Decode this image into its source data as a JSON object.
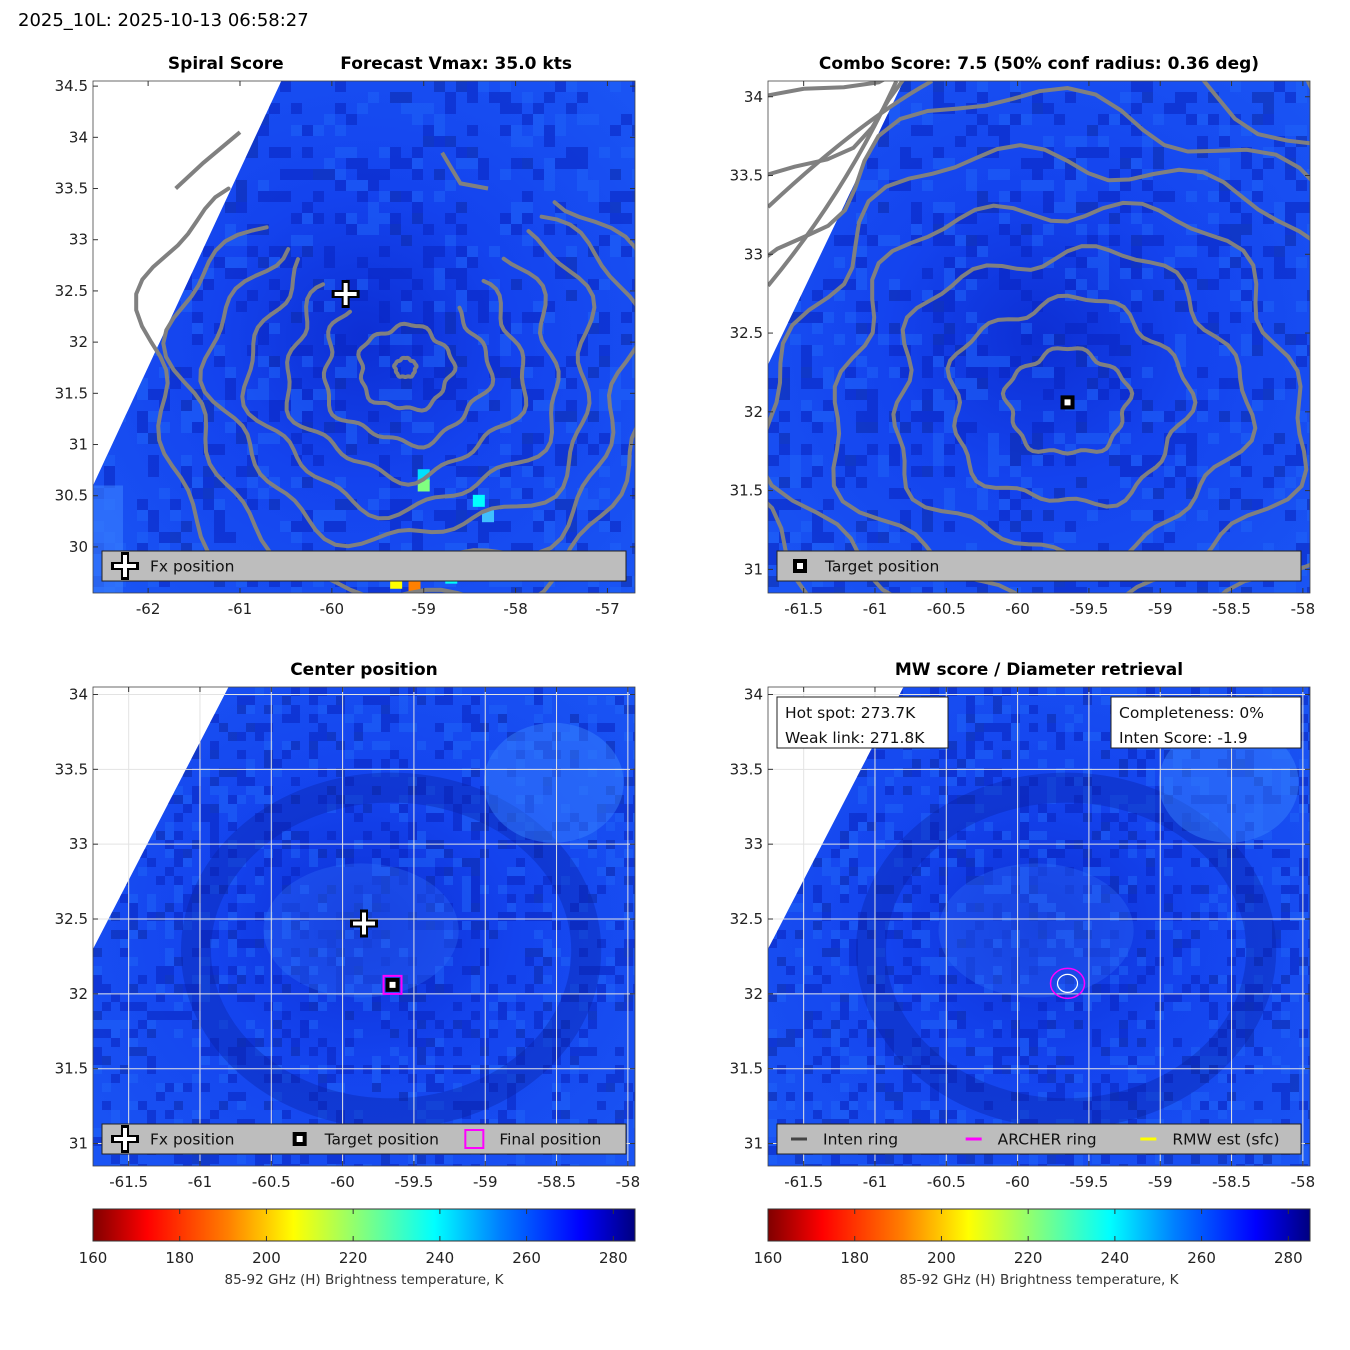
{
  "figure": {
    "suptitle": "2025_10L: 2025-10-13 06:58:27"
  },
  "colors": {
    "background_field": "#1446f0",
    "contour": "#808080",
    "legend_bg": "#bdbdbd",
    "magenta": "#ff00ff",
    "yellow": "#ffff00",
    "cmap": [
      "#800000",
      "#ff0000",
      "#ff8000",
      "#ffff00",
      "#80ff80",
      "#00ffff",
      "#0080ff",
      "#0000ff",
      "#000080"
    ]
  },
  "chart_data": [
    {
      "type": "heatmap",
      "panel": "spiral",
      "title_left": "Spiral Score",
      "title_right": "Forecast Vmax: 35.0 kts",
      "xlim": [
        -62.6,
        -56.7
      ],
      "ylim": [
        29.55,
        34.55
      ],
      "xticks": [
        -62,
        -61,
        -60,
        -59,
        -58,
        -57
      ],
      "yticks": [
        30,
        30.5,
        31,
        31.5,
        32,
        32.5,
        33,
        33.5,
        34,
        34.5
      ],
      "swath_edge": [
        [
          -62.6,
          30.6
        ],
        [
          -60.55,
          34.55
        ]
      ],
      "center": [
        -59.2,
        31.75
      ],
      "markers": [
        {
          "name": "Fx position",
          "symbol": "plus",
          "x": -59.85,
          "y": 32.47
        }
      ],
      "legend": [
        "Fx position"
      ]
    },
    {
      "type": "heatmap",
      "panel": "combo",
      "title": "Combo Score: 7.5  (50% conf radius: 0.36 deg)",
      "xlim": [
        -61.75,
        -57.95
      ],
      "ylim": [
        30.85,
        34.1
      ],
      "xticks": [
        -61.5,
        -61,
        -60.5,
        -60,
        -59.5,
        -59,
        -58.5,
        -58
      ],
      "yticks": [
        31,
        31.5,
        32,
        32.5,
        33,
        33.5,
        34
      ],
      "swath_edge": [
        [
          -61.75,
          32.3
        ],
        [
          -60.8,
          34.1
        ]
      ],
      "center": [
        -59.65,
        32.06
      ],
      "markers": [
        {
          "name": "Target position",
          "symbol": "square",
          "x": -59.65,
          "y": 32.06
        }
      ],
      "legend": [
        "Target position"
      ]
    },
    {
      "type": "heatmap",
      "panel": "center",
      "title": "Center position",
      "xlim": [
        -61.75,
        -57.95
      ],
      "ylim": [
        30.85,
        34.05
      ],
      "xticks": [
        -61.5,
        -61,
        -60.5,
        -60,
        -59.5,
        -59,
        -58.5,
        -58
      ],
      "yticks": [
        31,
        31.5,
        32,
        32.5,
        33,
        33.5,
        34
      ],
      "swath_edge": [
        [
          -61.75,
          32.3
        ],
        [
          -60.8,
          34.05
        ]
      ],
      "markers": [
        {
          "name": "Fx position",
          "symbol": "plus",
          "x": -59.85,
          "y": 32.47
        },
        {
          "name": "Target position",
          "symbol": "square",
          "x": -59.65,
          "y": 32.06
        },
        {
          "name": "Final position",
          "symbol": "msquare",
          "x": -59.65,
          "y": 32.06
        }
      ],
      "legend": [
        "Fx position",
        "Target position",
        "Final position"
      ]
    },
    {
      "type": "heatmap",
      "panel": "mw",
      "title": "MW score / Diameter retrieval",
      "xlim": [
        -61.75,
        -57.95
      ],
      "ylim": [
        30.85,
        34.05
      ],
      "xticks": [
        -61.5,
        -61,
        -60.5,
        -60,
        -59.5,
        -59,
        -58.5,
        -58
      ],
      "yticks": [
        31,
        31.5,
        32,
        32.5,
        33,
        33.5,
        34
      ],
      "swath_edge": [
        [
          -61.75,
          32.3
        ],
        [
          -60.8,
          34.05
        ]
      ],
      "center": [
        -59.65,
        32.07
      ],
      "info_left": [
        "Hot spot: 273.7K",
        "Weak link: 271.8K"
      ],
      "info_right": [
        "Completeness: 0%",
        "Inten Score: -1.9"
      ],
      "legend": [
        "Inten ring",
        "ARCHER ring",
        "RMW est (sfc)"
      ]
    }
  ],
  "colorbar": {
    "min": 160,
    "max": 285,
    "ticks": [
      160,
      180,
      200,
      220,
      240,
      260,
      280
    ],
    "label": "85-92 GHz (H) Brightness temperature, K"
  }
}
